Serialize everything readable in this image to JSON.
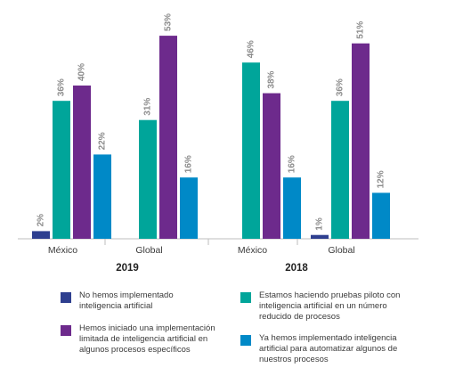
{
  "chart_data": {
    "type": "bar",
    "groups": [
      {
        "year": "2019",
        "categories": [
          "México",
          "Global"
        ]
      },
      {
        "year": "2018",
        "categories": [
          "México",
          "Global"
        ]
      }
    ],
    "categories": [
      "México",
      "Global",
      "México",
      "Global"
    ],
    "series": [
      {
        "name": "No hemos implementado inteligencia artificial",
        "color": "#2e3f8f",
        "values": [
          2,
          null,
          null,
          1
        ],
        "labels": [
          "2%",
          "",
          "",
          "1%"
        ]
      },
      {
        "name": "Estamos haciendo pruebas piloto con inteligencia artificial en un número reducido de procesos",
        "color": "#00a59a",
        "values": [
          36,
          31,
          46,
          36
        ],
        "labels": [
          "36%",
          "31%",
          "46%",
          "36%"
        ]
      },
      {
        "name": "Hemos iniciado una implementación limitada de inteligencia artificial en algunos procesos específicos",
        "color": "#6d2a8c",
        "values": [
          40,
          53,
          38,
          51
        ],
        "labels": [
          "40%",
          "53%",
          "38%",
          "51%"
        ]
      },
      {
        "name": "Ya hemos implementado inteligencia artificial para automatizar algunos de nuestros procesos",
        "color": "#0089c7",
        "values": [
          22,
          16,
          16,
          12
        ],
        "labels": [
          "22%",
          "16%",
          "16%",
          "12%"
        ]
      }
    ],
    "ylim": [
      0,
      55
    ],
    "grid": false,
    "legend_position": "bottom"
  },
  "legend": [
    {
      "label": "No hemos implementado inteligencia artificial",
      "color": "#2e3f8f"
    },
    {
      "label": "Estamos haciendo pruebas piloto con inteligencia artificial en un número reducido de procesos",
      "color": "#00a59a"
    },
    {
      "label": "Hemos iniciado una implementación limitada de inteligencia artificial en algunos procesos específicos",
      "color": "#6d2a8c"
    },
    {
      "label": "Ya hemos implementado inteligencia artificial para automatizar algunos de nuestros procesos",
      "color": "#0089c7"
    }
  ]
}
